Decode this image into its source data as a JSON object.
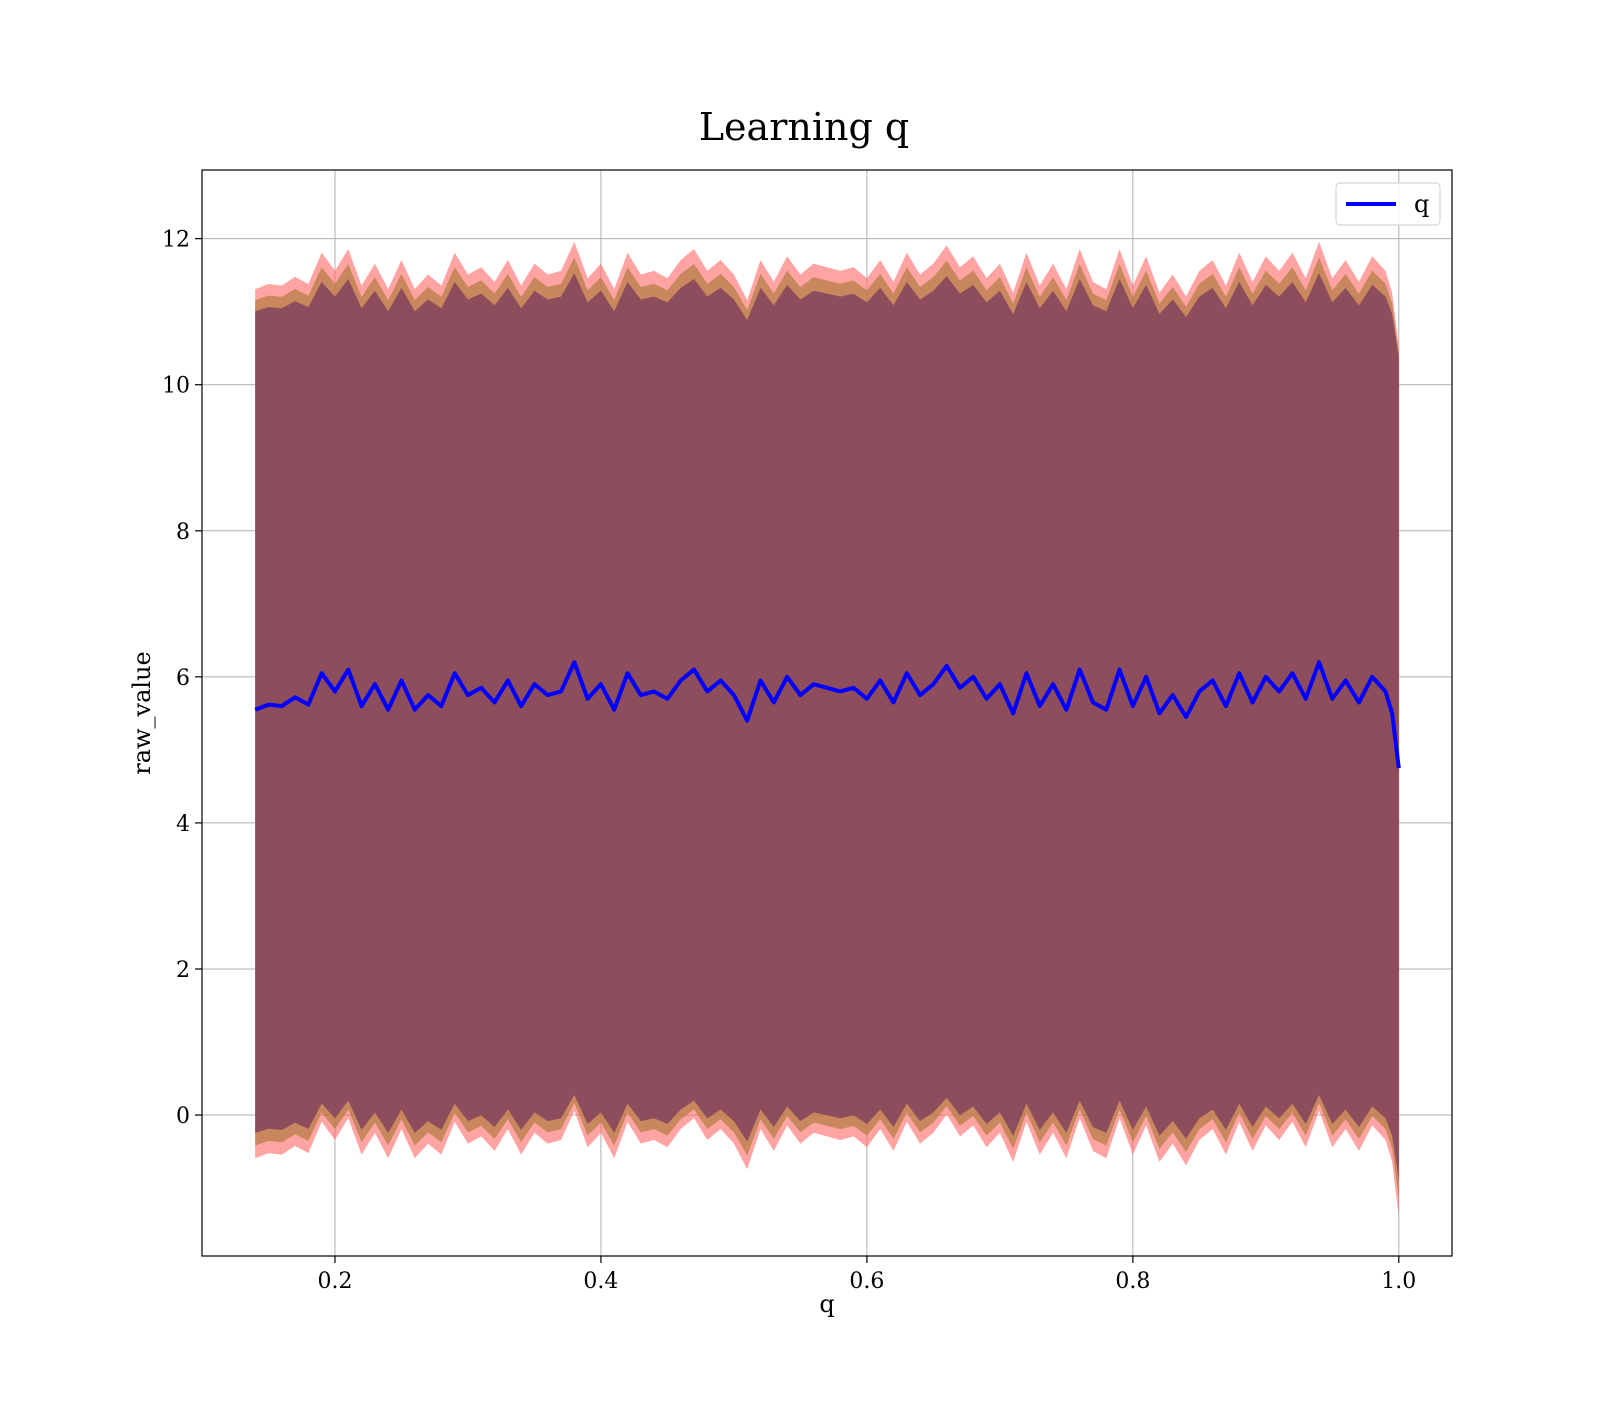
{
  "chart_data": {
    "type": "line",
    "title": "Learning q",
    "xlabel": "q",
    "ylabel": "raw_value",
    "xlim": [
      0.1,
      1.04
    ],
    "ylim": [
      -1.93,
      12.94
    ],
    "xticks": [
      0.2,
      0.4,
      0.6,
      0.8,
      1.0
    ],
    "xtick_labels": [
      "0.2",
      "0.4",
      "0.6",
      "0.8",
      "1.0"
    ],
    "yticks": [
      0,
      2,
      4,
      6,
      8,
      10,
      12
    ],
    "ytick_labels": [
      "0",
      "2",
      "4",
      "6",
      "8",
      "10",
      "12"
    ],
    "grid": true,
    "legend": {
      "position": "top-right",
      "entries": [
        {
          "label": "q",
          "color": "#0000ff"
        }
      ]
    },
    "colors": {
      "line": "#0000ff",
      "band_outer": "#ff6666",
      "band_inner": "#8a4a5c",
      "band_mid": "#b07a3e",
      "grid": "#b0b0b0"
    },
    "series": [
      {
        "name": "q",
        "x": [
          0.14,
          0.15,
          0.16,
          0.17,
          0.18,
          0.19,
          0.2,
          0.21,
          0.22,
          0.23,
          0.24,
          0.25,
          0.26,
          0.27,
          0.28,
          0.29,
          0.3,
          0.31,
          0.32,
          0.33,
          0.34,
          0.35,
          0.36,
          0.37,
          0.38,
          0.39,
          0.4,
          0.41,
          0.42,
          0.43,
          0.44,
          0.45,
          0.46,
          0.47,
          0.48,
          0.49,
          0.5,
          0.51,
          0.52,
          0.53,
          0.54,
          0.55,
          0.56,
          0.57,
          0.58,
          0.59,
          0.6,
          0.61,
          0.62,
          0.63,
          0.64,
          0.65,
          0.66,
          0.67,
          0.68,
          0.69,
          0.7,
          0.71,
          0.72,
          0.73,
          0.74,
          0.75,
          0.76,
          0.77,
          0.78,
          0.79,
          0.8,
          0.81,
          0.82,
          0.83,
          0.84,
          0.85,
          0.86,
          0.87,
          0.88,
          0.89,
          0.9,
          0.91,
          0.92,
          0.93,
          0.94,
          0.95,
          0.96,
          0.97,
          0.98,
          0.99,
          0.995,
          1.0
        ],
        "y": [
          5.55,
          5.62,
          5.6,
          5.72,
          5.62,
          6.05,
          5.8,
          6.1,
          5.6,
          5.9,
          5.55,
          5.95,
          5.55,
          5.75,
          5.6,
          6.05,
          5.75,
          5.85,
          5.65,
          5.95,
          5.6,
          5.9,
          5.75,
          5.8,
          6.2,
          5.7,
          5.9,
          5.55,
          6.05,
          5.75,
          5.8,
          5.7,
          5.95,
          6.1,
          5.8,
          5.95,
          5.75,
          5.4,
          5.95,
          5.65,
          6.0,
          5.75,
          5.9,
          5.85,
          5.8,
          5.85,
          5.7,
          5.95,
          5.65,
          6.05,
          5.75,
          5.9,
          6.15,
          5.85,
          6.0,
          5.7,
          5.9,
          5.5,
          6.05,
          5.6,
          5.9,
          5.55,
          6.1,
          5.65,
          5.55,
          6.1,
          5.6,
          6.0,
          5.5,
          5.75,
          5.45,
          5.8,
          5.95,
          5.6,
          6.05,
          5.65,
          6.0,
          5.8,
          6.05,
          5.7,
          6.2,
          5.7,
          5.95,
          5.65,
          6.0,
          5.8,
          5.5,
          4.75
        ],
        "band_inner": {
          "lower": -0.05,
          "upper": 11.2
        },
        "band_outer": {
          "lower": -0.35,
          "upper": 11.55
        }
      }
    ]
  }
}
